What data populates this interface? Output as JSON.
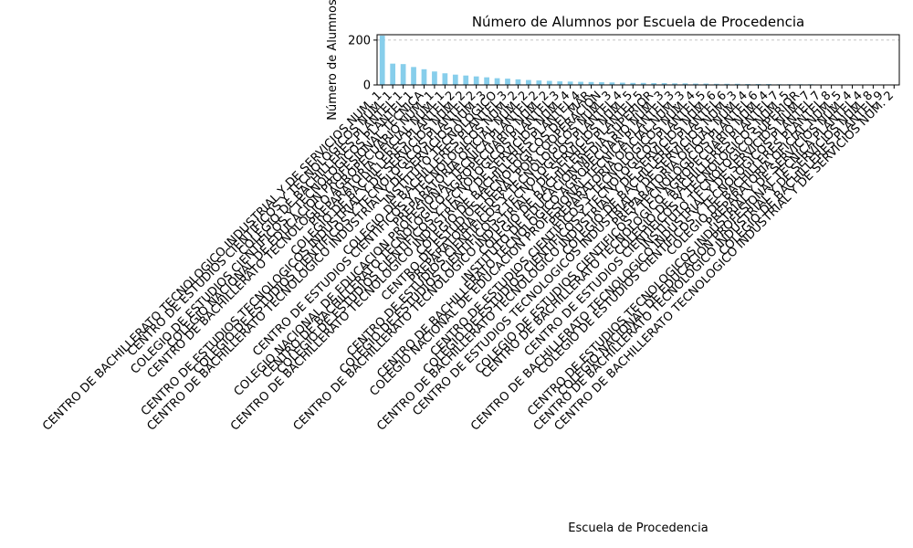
{
  "chart_data": {
    "type": "bar",
    "title": "Número de Alumnos por Escuela de Procedencia",
    "x_label": "Escuela de Procedencia",
    "y_label": "Número de Alumnos",
    "color": "#87ceeb",
    "grid": true,
    "ylim": [
      0,
      224
    ],
    "yticks": [
      0,
      200
    ],
    "categories": [
      "CENTRO DE BACHILLERATO TECNOLOGICO INDUSTRIAL Y DE SERVICIOS NUM. 1",
      "CENTRO DE ESTUDIOS CIENTIFICOS Y TECNOLOGICOS NUM. 1",
      "COLEGIO DE BACHILLERES PLANTEL 1",
      "COLEGIO DE ESTUDIOS CIENTIFICOS Y TECNOLOGICOS PLANTEL 1",
      "COLEGIO NACIONAL DE EDUCACION PROFESIONAL TECNICA",
      "CENTRO DE BACHILLERATO TECNOLOGICO AGROPECUARIO NUM. 1",
      "PREPARATORIA OFICIAL NUM. 1",
      "COLEGIO DE BACHILLERES PLANTEL 2",
      "CENTRO DE ESTUDIOS TECNOLOGICOS INDUSTRIAL Y DE SERVICIOS NUM. 2",
      "COLEGIO DE ESTUDIOS CIENTIFICOS Y TECNOLOGICOS PLANTEL 2",
      "CENTRO DE BACHILLERATO TECNOLOGICO INDUSTRIAL Y DE SERVICIOS NUM. 3",
      "INSTITUTO TECNOLOGICO",
      "COLEGIO DE BACHILLERES PLANTEL 3",
      "CENTRO DE ESTUDIOS CIENTIFICOS Y TECNOLOGICOS NUM. 2",
      "PREPARATORIA OFICIAL NUM. 2",
      "COLEGIO NACIONAL DE EDUCACION PROFESIONAL TECNICA PLANTEL 2",
      "CENTRO DE BACHILLERATO TECNOLOGICO AGROPECUARIO NUM. 2",
      "COLEGIO DE ESTUDIOS CIENTIFICOS Y TECNOLOGICOS PLANTEL 3",
      "CENTRO DE BACHILLERATO TECNOLOGICO INDUSTRIAL Y DE SERVICIOS NUM. 4",
      "COLEGIO DE BACHILLERES PLANTEL 4",
      "CENTRO DE ESTUDIOS TECNOLOGICOS DEL MAR",
      "PREPARATORIA FEDERAL POR COOPERACION",
      "CENTRO DE ESTUDIOS CIENTIFICOS Y TECNOLOGICOS NUM. 3",
      "COLEGIO DE ESTUDIOS CIENTIFICOS Y TECNOLOGICOS PLANTEL 4",
      "CENTRO DE BACHILLERATO TECNOLOGICO INDUSTRIAL Y DE SERVICIOS NUM. 5",
      "COLEGIO DE BACHILLERES PLANTEL 5",
      "INSTITUTO DE EDUCACION MEDIA SUPERIOR",
      "CENTRO DE BACHILLERATO TECNOLOGICO AGROPECUARIO NUM. 3",
      "COLEGIO NACIONAL DE EDUCACION PROFESIONAL TECNICA PLANTEL 3",
      "PREPARATORIA OFICIAL NUM. 3",
      "CENTRO DE ESTUDIOS CIENTIFICOS Y TECNOLOGICOS NUM. 4",
      "COLEGIO DE ESTUDIOS CIENTIFICOS Y TECNOLOGICOS PLANTEL 5",
      "CENTRO DE BACHILLERATO TECNOLOGICO INDUSTRIAL Y DE SERVICIOS NUM. 6",
      "COLEGIO DE BACHILLERES PLANTEL 6",
      "CENTRO DE ESTUDIOS TECNOLOGICOS INDUSTRIAL Y DE SERVICIOS NUM. 3",
      "PREPARATORIA OFICIAL NUM. 4",
      "COLEGIO DE ESTUDIOS CIENTIFICOS Y TECNOLOGICOS PLANTEL 6",
      "CENTRO DE BACHILLERATO TECNOLOGICO AGROPECUARIO NUM. 4",
      "COLEGIO DE BACHILLERES PLANTEL 7",
      "CENTRO DE ESTUDIOS CIENTIFICOS Y TECNOLOGICOS NUM. 5",
      "INSTITUTO TECNOLOGICO SUPERIOR",
      "CENTRO DE BACHILLERATO TECNOLOGICO INDUSTRIAL Y DE SERVICIOS NUM. 7",
      "COLEGIO DE ESTUDIOS CIENTIFICOS Y TECNOLOGICOS PLANTEL 7",
      "COLEGIO DE BACHILLERES PLANTEL 8",
      "PREPARATORIA OFICIAL NUM. 5",
      "CENTRO DE ESTUDIOS TECNOLOGICOS INDUSTRIAL Y DE SERVICIOS NUM. 4",
      "COLEGIO NACIONAL DE EDUCACION PROFESIONAL TECNICA PLANTEL 4",
      "CENTRO DE BACHILLERATO TECNOLOGICO INDUSTRIAL Y DE SERVICIOS NUM. 8",
      "COLEGIO DE BACHILLERES PLANTEL 9",
      "CENTRO DE BACHILLERATO TECNOLOGICO INDUSTRIAL Y DE SERVICIOS NUM. 2"
    ],
    "values": [
      220,
      95,
      93,
      80,
      70,
      60,
      52,
      46,
      42,
      38,
      34,
      30,
      28,
      25,
      22,
      20,
      18,
      16,
      15,
      14,
      13,
      12,
      11,
      10,
      9,
      9,
      8,
      8,
      7,
      7,
      6,
      6,
      5,
      5,
      5,
      4,
      4,
      4,
      3,
      3,
      3,
      3,
      2,
      2,
      2,
      2,
      2,
      1,
      1,
      1
    ]
  }
}
